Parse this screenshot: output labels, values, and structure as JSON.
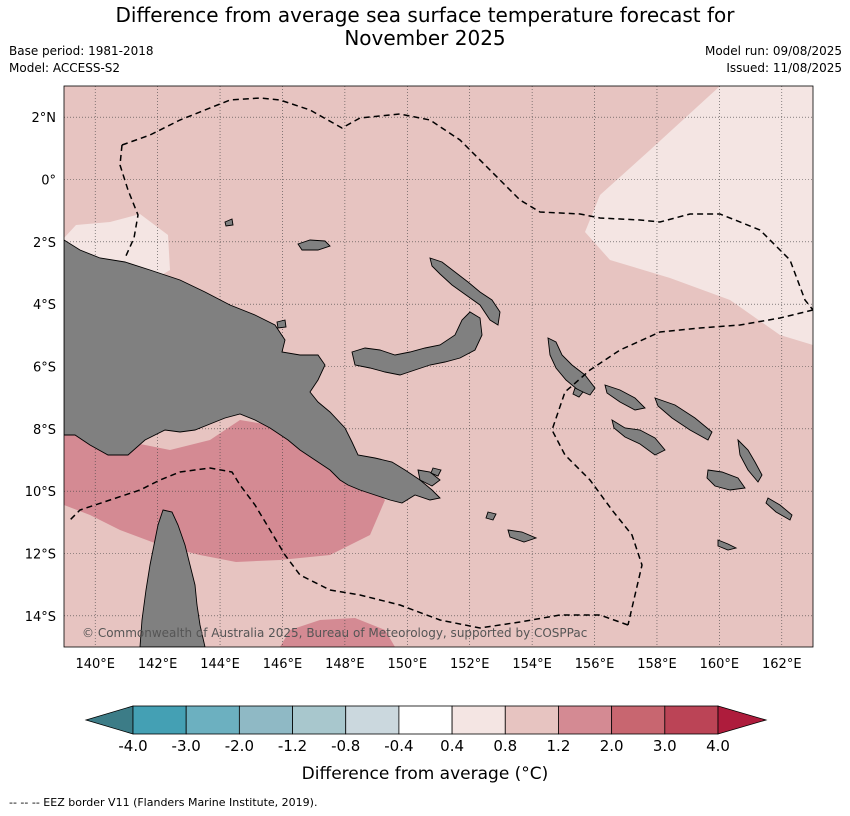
{
  "header": {
    "title_line1": "Difference from average sea surface temperature forecast for",
    "title_line2": "November 2025",
    "base_period": "Base period: 1981-2018",
    "model": "Model: ACCESS-S2",
    "model_run": "Model run: 09/08/2025",
    "issued": "Issued: 11/08/2025"
  },
  "map": {
    "copyright": "© Commonwealth of Australia 2025, Bureau of Meteorology, supported by COSPPac",
    "lon_labels": [
      "140°E",
      "142°E",
      "144°E",
      "146°E",
      "148°E",
      "150°E",
      "152°E",
      "154°E",
      "156°E",
      "158°E",
      "160°E",
      "162°E"
    ],
    "lat_labels": [
      "2°N",
      "0°",
      "2°S",
      "4°S",
      "6°S",
      "8°S",
      "10°S",
      "12°S",
      "14°S"
    ],
    "lon_range": [
      139,
      163
    ],
    "lat_range": [
      -15,
      3
    ],
    "land_color": "#808080",
    "anomaly_fill_main": "#e7c4c1",
    "anomaly_fill_low": "#f4e5e3",
    "anomaly_fill_high": "#d48a93"
  },
  "colorbar": {
    "tick_labels": [
      "-4.0",
      "-3.0",
      "-2.0",
      "-1.2",
      "-0.8",
      "-0.4",
      "0.4",
      "0.8",
      "1.2",
      "2.0",
      "3.0",
      "4.0"
    ],
    "colors": [
      "#3c7c87",
      "#44a0b4",
      "#6cb0c0",
      "#8fb9c5",
      "#a8c7cd",
      "#cbd8de",
      "#ffffff",
      "#f4e5e3",
      "#e7c4c1",
      "#d48a93",
      "#c86670",
      "#bb4456",
      "#ae1c3c"
    ],
    "label": "Difference from average (°C)"
  },
  "footer": {
    "legend_text": "--  --  -- EEZ border V11 (Flanders Marine Institute, 2019)."
  }
}
